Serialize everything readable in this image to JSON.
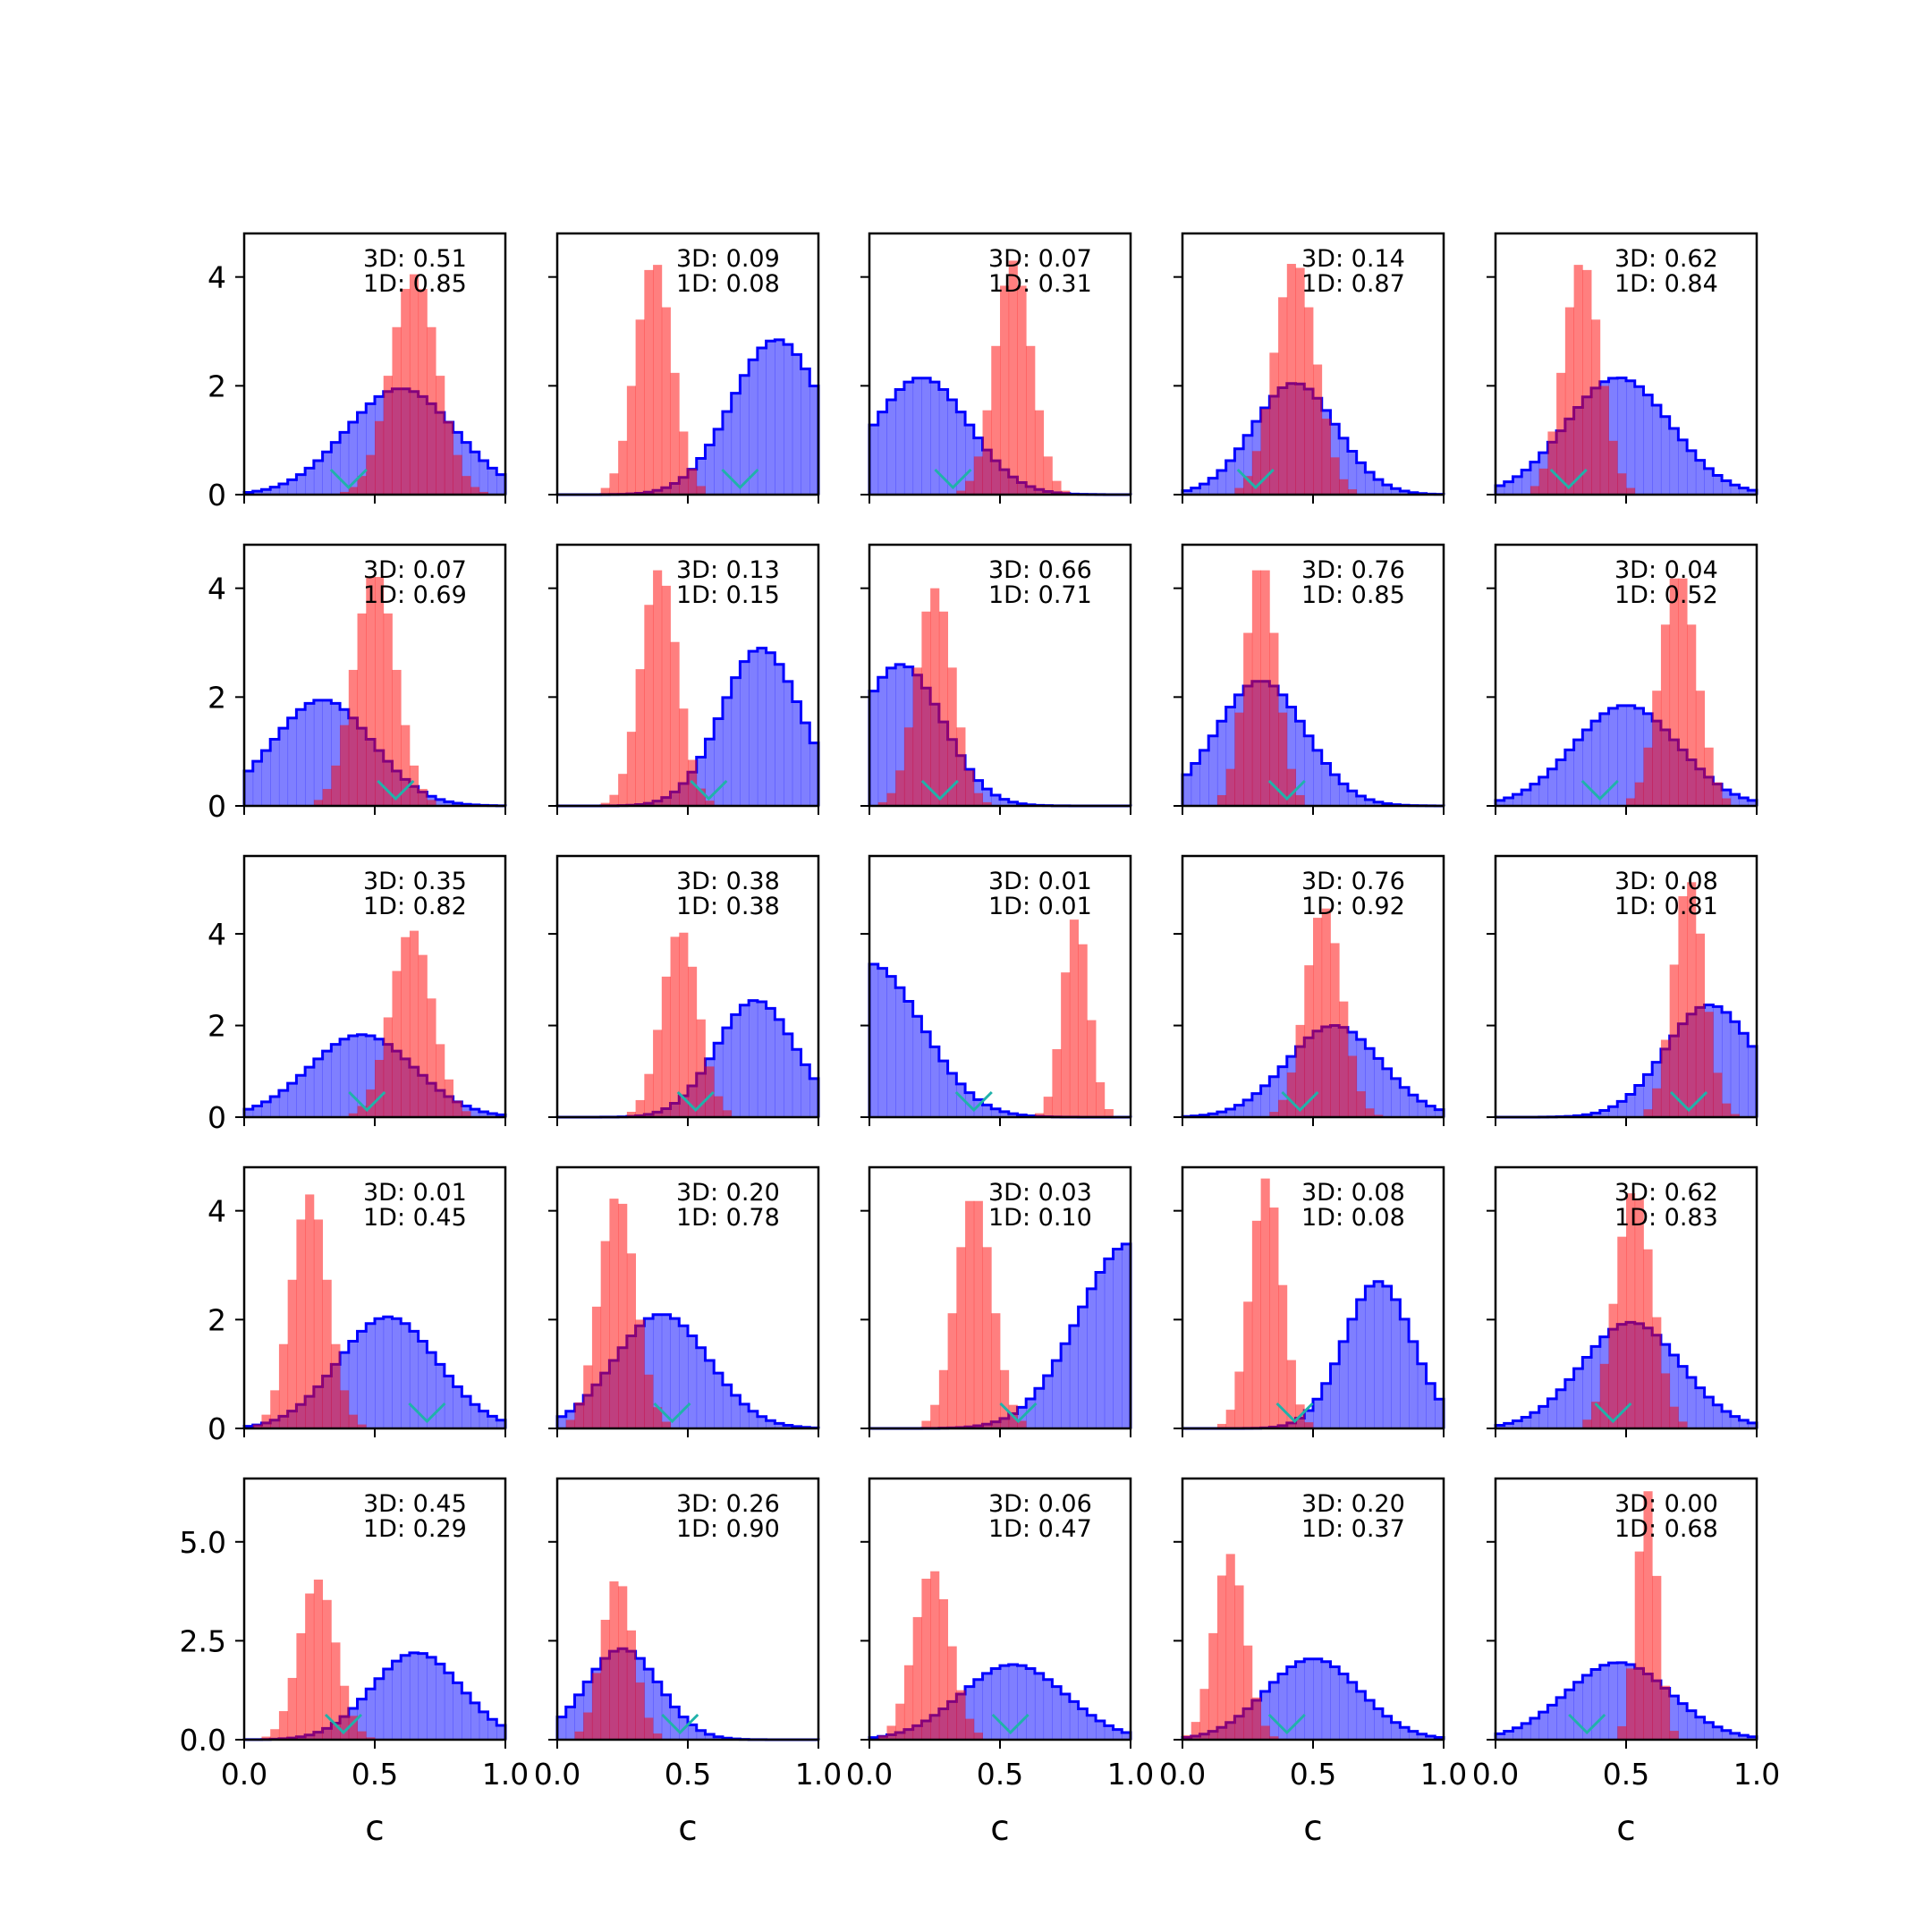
{
  "chart_data": {
    "type": "histogram-grid",
    "rows": 5,
    "cols": 5,
    "xlabel": "c",
    "xlim": [
      0,
      1
    ],
    "xticks": [
      "0.0",
      "0.5",
      "1.0"
    ],
    "row_ylim": [
      [
        0,
        4.8
      ],
      [
        0,
        4.8
      ],
      [
        0,
        5.7
      ],
      [
        0,
        4.8
      ],
      [
        0,
        6.6
      ]
    ],
    "row_yticks": [
      [
        "0",
        "2",
        "4"
      ],
      [
        "0",
        "2",
        "4"
      ],
      [
        "0",
        "2",
        "4"
      ],
      [
        "0",
        "2",
        "4"
      ],
      [
        "0.0",
        "2.5",
        "5.0"
      ]
    ],
    "row_ytick_values": [
      [
        0,
        2,
        4
      ],
      [
        0,
        2,
        4
      ],
      [
        0,
        2,
        4
      ],
      [
        0,
        2,
        4
      ],
      [
        0,
        2.5,
        5
      ]
    ],
    "colors": {
      "red": "#ff0000",
      "blue": "#0000ff",
      "marker": "#20b2aa"
    },
    "panels": [
      {
        "t3d": "3D: 0.51",
        "t1d": "1D: 0.85",
        "blue": {
          "mu": 0.6,
          "sd": 0.21,
          "peak": 1.95
        },
        "red": {
          "mu": 0.65,
          "sd": 0.09,
          "peak": 4.05
        },
        "marker": 0.4
      },
      {
        "t3d": "3D: 0.09",
        "t1d": "1D: 0.08",
        "blue": {
          "mu": 0.84,
          "sd": 0.17,
          "peak": 2.85
        },
        "red": {
          "mu": 0.37,
          "sd": 0.07,
          "peak": 4.3
        },
        "marker": 0.7
      },
      {
        "t3d": "3D: 0.07",
        "t1d": "1D: 0.31",
        "blue": {
          "mu": 0.2,
          "sd": 0.18,
          "peak": 2.15
        },
        "red": {
          "mu": 0.55,
          "sd": 0.07,
          "peak": 4.3
        },
        "marker": 0.32
      },
      {
        "t3d": "3D: 0.14",
        "t1d": "1D: 0.87",
        "blue": {
          "mu": 0.43,
          "sd": 0.16,
          "peak": 2.05
        },
        "red": {
          "mu": 0.43,
          "sd": 0.08,
          "peak": 4.3
        },
        "marker": 0.28
      },
      {
        "t3d": "3D: 0.62",
        "t1d": "1D: 0.84",
        "blue": {
          "mu": 0.47,
          "sd": 0.2,
          "peak": 2.15
        },
        "red": {
          "mu": 0.33,
          "sd": 0.07,
          "peak": 4.3
        },
        "marker": 0.28
      },
      {
        "t3d": "3D: 0.07",
        "t1d": "1D: 0.69",
        "blue": {
          "mu": 0.3,
          "sd": 0.19,
          "peak": 1.95
        },
        "red": {
          "mu": 0.5,
          "sd": 0.08,
          "peak": 4.3
        },
        "marker": 0.58
      },
      {
        "t3d": "3D: 0.13",
        "t1d": "1D: 0.15",
        "blue": {
          "mu": 0.78,
          "sd": 0.15,
          "peak": 2.9
        },
        "red": {
          "mu": 0.39,
          "sd": 0.07,
          "peak": 4.35
        },
        "marker": 0.58
      },
      {
        "t3d": "3D: 0.66",
        "t1d": "1D: 0.71",
        "blue": {
          "mu": 0.12,
          "sd": 0.16,
          "peak": 2.6
        },
        "red": {
          "mu": 0.25,
          "sd": 0.07,
          "peak": 4.0
        },
        "marker": 0.27
      },
      {
        "t3d": "3D: 0.76",
        "t1d": "1D: 0.85",
        "blue": {
          "mu": 0.3,
          "sd": 0.17,
          "peak": 2.3
        },
        "red": {
          "mu": 0.3,
          "sd": 0.06,
          "peak": 4.5
        },
        "marker": 0.4
      },
      {
        "t3d": "3D: 0.04",
        "t1d": "1D: 0.52",
        "blue": {
          "mu": 0.5,
          "sd": 0.2,
          "peak": 1.85
        },
        "red": {
          "mu": 0.7,
          "sd": 0.07,
          "peak": 4.3
        },
        "marker": 0.4
      },
      {
        "t3d": "3D: 0.35",
        "t1d": "1D: 0.82",
        "blue": {
          "mu": 0.45,
          "sd": 0.2,
          "peak": 1.8
        },
        "red": {
          "mu": 0.64,
          "sd": 0.08,
          "peak": 4.1
        },
        "marker": 0.47
      },
      {
        "t3d": "3D: 0.38",
        "t1d": "1D: 0.38",
        "blue": {
          "mu": 0.76,
          "sd": 0.15,
          "peak": 2.55
        },
        "red": {
          "mu": 0.47,
          "sd": 0.07,
          "peak": 4.1
        },
        "marker": 0.53
      },
      {
        "t3d": "3D: 0.01",
        "t1d": "1D: 0.01",
        "blue": {
          "mu": 0.0,
          "sd": 0.2,
          "peak": 3.35
        },
        "red": {
          "mu": 0.79,
          "sd": 0.05,
          "peak": 4.35
        },
        "marker": 0.4
      },
      {
        "t3d": "3D: 0.76",
        "t1d": "1D: 0.92",
        "blue": {
          "mu": 0.58,
          "sd": 0.18,
          "peak": 2.0
        },
        "red": {
          "mu": 0.54,
          "sd": 0.07,
          "peak": 4.6
        },
        "marker": 0.45
      },
      {
        "t3d": "3D: 0.08",
        "t1d": "1D: 0.81",
        "blue": {
          "mu": 0.82,
          "sd": 0.17,
          "peak": 2.45
        },
        "red": {
          "mu": 0.74,
          "sd": 0.06,
          "peak": 5.2
        },
        "marker": 0.74
      },
      {
        "t3d": "3D: 0.01",
        "t1d": "1D: 0.45",
        "blue": {
          "mu": 0.55,
          "sd": 0.19,
          "peak": 2.05
        },
        "red": {
          "mu": 0.25,
          "sd": 0.07,
          "peak": 4.3
        },
        "marker": 0.7
      },
      {
        "t3d": "3D: 0.20",
        "t1d": "1D: 0.78",
        "blue": {
          "mu": 0.4,
          "sd": 0.18,
          "peak": 2.1
        },
        "red": {
          "mu": 0.23,
          "sd": 0.07,
          "peak": 4.3
        },
        "marker": 0.44
      },
      {
        "t3d": "3D: 0.03",
        "t1d": "1D: 0.10",
        "blue": {
          "mu": 1.0,
          "sd": 0.2,
          "peak": 3.4
        },
        "red": {
          "mu": 0.4,
          "sd": 0.07,
          "peak": 4.3
        },
        "marker": 0.57
      },
      {
        "t3d": "3D: 0.08",
        "t1d": "1D: 0.08",
        "blue": {
          "mu": 0.75,
          "sd": 0.13,
          "peak": 2.7
        },
        "red": {
          "mu": 0.32,
          "sd": 0.06,
          "peak": 4.6
        },
        "marker": 0.43
      },
      {
        "t3d": "3D: 0.62",
        "t1d": "1D: 0.83",
        "blue": {
          "mu": 0.52,
          "sd": 0.19,
          "peak": 1.95
        },
        "red": {
          "mu": 0.53,
          "sd": 0.07,
          "peak": 4.4
        },
        "marker": 0.45
      },
      {
        "t3d": "3D: 0.45",
        "t1d": "1D: 0.29",
        "blue": {
          "mu": 0.66,
          "sd": 0.17,
          "peak": 2.2
        },
        "red": {
          "mu": 0.28,
          "sd": 0.07,
          "peak": 4.05
        },
        "marker": 0.38
      },
      {
        "t3d": "3D: 0.26",
        "t1d": "1D: 0.90",
        "blue": {
          "mu": 0.25,
          "sd": 0.14,
          "peak": 2.3
        },
        "red": {
          "mu": 0.23,
          "sd": 0.06,
          "peak": 4.1
        },
        "marker": 0.47
      },
      {
        "t3d": "3D: 0.06",
        "t1d": "1D: 0.47",
        "blue": {
          "mu": 0.55,
          "sd": 0.2,
          "peak": 1.9
        },
        "red": {
          "mu": 0.24,
          "sd": 0.07,
          "peak": 4.3
        },
        "marker": 0.54
      },
      {
        "t3d": "3D: 0.20",
        "t1d": "1D: 0.37",
        "blue": {
          "mu": 0.5,
          "sd": 0.18,
          "peak": 2.05
        },
        "red": {
          "mu": 0.18,
          "sd": 0.06,
          "peak": 4.7
        },
        "marker": 0.4
      },
      {
        "t3d": "3D: 0.00",
        "t1d": "1D: 0.68",
        "blue": {
          "mu": 0.47,
          "sd": 0.2,
          "peak": 1.95
        },
        "red": {
          "mu": 0.58,
          "sd": 0.04,
          "peak": 6.3
        },
        "marker": 0.35
      }
    ]
  }
}
